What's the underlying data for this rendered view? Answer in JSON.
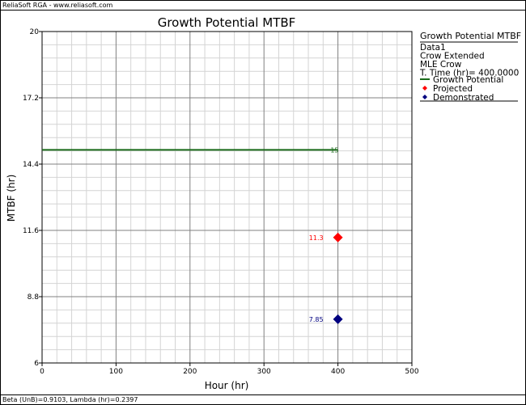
{
  "app_header": "ReliaSoft RGA - www.reliasoft.com",
  "footer_text": "Beta (UnB)=0.9103, Lambda (hr)=0.2397",
  "legend": {
    "title": "Growth Potential MTBF",
    "lines": [
      "Data1",
      "Crow Extended",
      "MLE Crow",
      "T. Time (hr)= 400.0000"
    ],
    "entries": [
      {
        "label": "Growth Potential",
        "symbol": "line",
        "color": "#1a6b1a"
      },
      {
        "label": "Projected",
        "symbol": "diamond",
        "color": "#ff0000"
      },
      {
        "label": "Demonstrated",
        "symbol": "diamond",
        "color": "#00007f"
      }
    ]
  },
  "chart_data": {
    "type": "line",
    "title": "Growth Potential MTBF",
    "xlabel": "Hour (hr)",
    "ylabel": "MTBF (hr)",
    "xlim": [
      0,
      500
    ],
    "ylim": [
      6,
      20
    ],
    "x_ticks": [
      "0",
      "100",
      "200",
      "300",
      "400",
      "500"
    ],
    "y_ticks": [
      "6",
      "8.8",
      "11.6",
      "14.4",
      "17.2",
      "20"
    ],
    "grid": true,
    "legend_position": "right",
    "series": [
      {
        "name": "Growth Potential",
        "kind": "line",
        "color": "#1a6b1a",
        "points": [
          [
            0,
            15
          ],
          [
            400,
            15
          ]
        ],
        "label": "15",
        "label_at": [
          380,
          15
        ]
      },
      {
        "name": "Projected",
        "kind": "point",
        "color": "#ff0000",
        "points": [
          [
            400,
            11.3
          ]
        ],
        "label": "11.3"
      },
      {
        "name": "Demonstrated",
        "kind": "point",
        "color": "#00007f",
        "points": [
          [
            400,
            7.85
          ]
        ],
        "label": "7.85"
      }
    ]
  }
}
